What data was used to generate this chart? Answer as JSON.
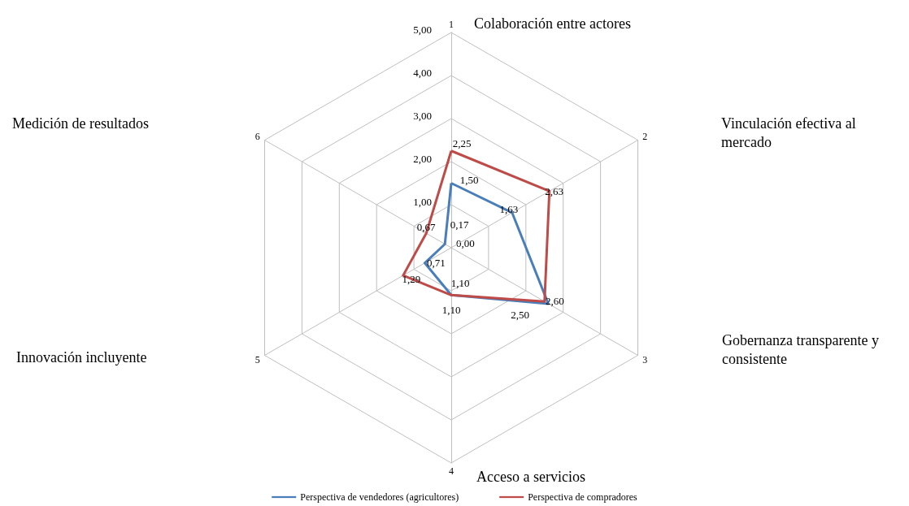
{
  "chart_data": {
    "type": "radar",
    "categories": [
      "Colaboración entre actores",
      "Vinculación efectiva al mercado",
      "Gobernanza transparente y consistente",
      "Acceso a servicios",
      "Innovación incluyente",
      "Medición de resultados"
    ],
    "series": [
      {
        "name": "Perspectiva de vendedores (agricultores)",
        "color": "#4a7ebb",
        "values": [
          1.5,
          1.63,
          2.6,
          1.1,
          0.71,
          0.17
        ],
        "value_labels": [
          "1,50",
          "1,63",
          "2,60",
          "1,10",
          "0,71",
          "0,17"
        ]
      },
      {
        "name": "Perspectiva de compradores",
        "color": "#be4b48",
        "values": [
          2.25,
          2.63,
          2.5,
          1.1,
          1.29,
          0.67
        ],
        "value_labels": [
          "2,25",
          "2,63",
          "2,50",
          "1,10",
          "1,29",
          "0,67"
        ]
      }
    ],
    "ylim": [
      0,
      5
    ],
    "yticks": [
      {
        "value": 0,
        "label": "0,00"
      },
      {
        "value": 1,
        "label": "1,00"
      },
      {
        "value": 2,
        "label": "2,00"
      },
      {
        "value": 3,
        "label": "3,00"
      },
      {
        "value": 4,
        "label": "4,00"
      },
      {
        "value": 5,
        "label": "5,00"
      }
    ],
    "annotations": [
      "1",
      "2",
      "3",
      "4",
      "5",
      "6"
    ],
    "legend": "bottom",
    "grid": true,
    "marker": "none",
    "line_style": "solid"
  }
}
